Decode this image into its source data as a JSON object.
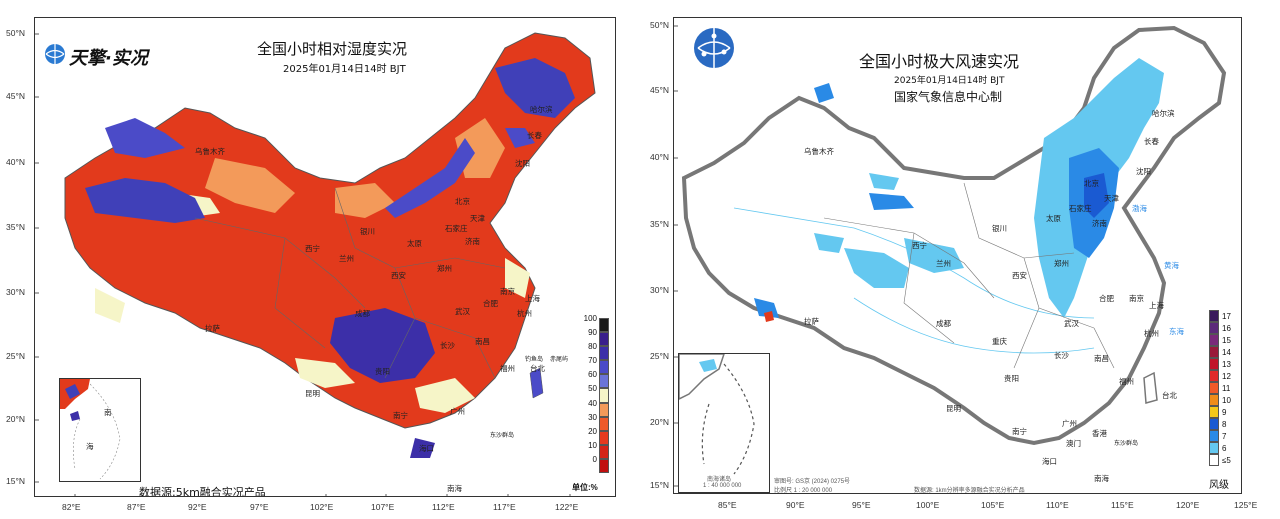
{
  "left_map": {
    "logo": "天擎·实况",
    "title": "全国小时相对湿度实况",
    "subtitle": "2025年01月14日14时 BJT",
    "source": "数据源:5km融合实况产品",
    "unit": "单位:%",
    "inset_labels": [
      "南",
      "海"
    ],
    "lat_labels": [
      "50°N",
      "45°N",
      "40°N",
      "35°N",
      "30°N",
      "25°N",
      "20°N",
      "15°N"
    ],
    "lon_labels": [
      "82°E",
      "87°E",
      "92°E",
      "97°E",
      "102°E",
      "107°E",
      "112°E",
      "117°E",
      "122°E"
    ],
    "legend": {
      "levels": [
        "100",
        "90",
        "80",
        "70",
        "60",
        "50",
        "40",
        "30",
        "20",
        "10",
        "0"
      ],
      "colors": [
        "#1a1a1a",
        "#3a1f8c",
        "#3c2fa8",
        "#4b4bc8",
        "#6b74d8",
        "#f6f5c8",
        "#f39a5a",
        "#ee5a2a",
        "#e63a1f",
        "#d42418",
        "#c01010"
      ]
    },
    "cities": [
      "乌鲁木齐",
      "哈尔滨",
      "长春",
      "沈阳",
      "北京",
      "天津",
      "石家庄",
      "银川",
      "太原",
      "济南",
      "兰州",
      "西宁",
      "西安",
      "郑州",
      "南京",
      "上海",
      "合肥",
      "杭州",
      "武汉",
      "成都",
      "拉萨",
      "长沙",
      "南昌",
      "贵阳",
      "昆明",
      "福州",
      "台北",
      "广州",
      "南宁",
      "海口",
      "钓鱼岛",
      "赤尾屿",
      "东沙群岛",
      "南海"
    ]
  },
  "right_map": {
    "title": "全国小时极大风速实况",
    "subtitle": "2025年01月14日14时 BJT",
    "org": "国家气象信息中心制",
    "review_no": "审图号: GS京 (2024) 0275号",
    "scale": "比例尺 1 : 20 000 000",
    "source": "数据源: 1km分辨率多源融合实况分析产品",
    "legend_title": "风级",
    "inset_title": "南海诸岛",
    "inset_scale": "1 : 40 000 000",
    "lat_labels": [
      "50°N",
      "45°N",
      "40°N",
      "35°N",
      "30°N",
      "25°N",
      "20°N",
      "15°N"
    ],
    "lon_labels": [
      "85°E",
      "90°E",
      "95°E",
      "100°E",
      "105°E",
      "110°E",
      "115°E",
      "120°E",
      "125°E"
    ],
    "legend": {
      "levels": [
        "17",
        "16",
        "15",
        "14",
        "13",
        "12",
        "11",
        "10",
        "9",
        "8",
        "7",
        "6",
        "≤5"
      ],
      "colors": [
        "#3a1a5c",
        "#5c2a7a",
        "#7a2a7a",
        "#9a1a3a",
        "#c0142a",
        "#e02a2a",
        "#f05a2a",
        "#f08c1a",
        "#f5c81a",
        "#1a5ad2",
        "#2a8ae6",
        "#64c8f0",
        "#ffffff"
      ]
    },
    "cities": [
      "哈尔滨",
      "长春",
      "乌鲁木齐",
      "沈阳",
      "北京",
      "天津",
      "石家庄",
      "太原",
      "银川",
      "济南",
      "西宁",
      "兰州",
      "西安",
      "郑州",
      "南京",
      "合肥",
      "上海",
      "拉萨",
      "成都",
      "武汉",
      "杭州",
      "重庆",
      "长沙",
      "南昌",
      "贵阳",
      "福州",
      "台北",
      "昆明",
      "广州",
      "南宁",
      "香港",
      "澳门",
      "海口",
      "东沙群岛",
      "南海",
      "东海",
      "黄海",
      "渤海"
    ]
  }
}
